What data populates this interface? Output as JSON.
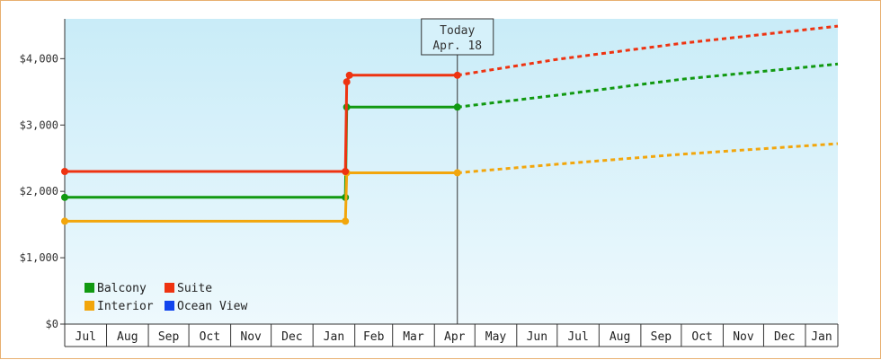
{
  "chart_data": {
    "type": "line",
    "style": "step",
    "title": "",
    "xlabel": "",
    "ylabel": "",
    "y_unit_prefix": "$",
    "ylim": [
      0,
      4600
    ],
    "y_ticks": [
      {
        "value": 0,
        "label": "$0"
      },
      {
        "value": 1000,
        "label": "$1,000"
      },
      {
        "value": 2000,
        "label": "$2,000"
      },
      {
        "value": 3000,
        "label": "$3,000"
      },
      {
        "value": 4000,
        "label": "$4,000"
      }
    ],
    "x_month_labels": [
      "Jul",
      "Aug",
      "Sep",
      "Oct",
      "Nov",
      "Dec",
      "Jan",
      "Feb",
      "Mar",
      "Apr",
      "May",
      "Jun",
      "Jul",
      "Aug",
      "Sep",
      "Oct",
      "Nov",
      "Dec",
      "Jan"
    ],
    "x_start": "2024-07-01",
    "x_end": "2026-01-25",
    "today": {
      "label_line1": "Today",
      "label_line2": "Apr. 18",
      "date": "2025-04-18"
    },
    "grid": true,
    "legend_position": "bottom-left",
    "series": [
      {
        "name": "Balcony",
        "color": "#119911",
        "history": [
          [
            "2024-07-01",
            1910
          ],
          [
            "2025-01-25",
            1910
          ],
          [
            "2025-01-26",
            3270
          ],
          [
            "2025-04-18",
            3270
          ]
        ],
        "forecast": [
          [
            "2025-04-18",
            3270
          ],
          [
            "2025-07-01",
            3450
          ],
          [
            "2025-10-01",
            3690
          ],
          [
            "2026-01-25",
            3920
          ]
        ]
      },
      {
        "name": "Interior",
        "color": "#f2a60c",
        "history": [
          [
            "2024-07-01",
            1550
          ],
          [
            "2025-01-25",
            1550
          ],
          [
            "2025-01-26",
            2280
          ],
          [
            "2025-04-18",
            2280
          ]
        ],
        "forecast": [
          [
            "2025-04-18",
            2280
          ],
          [
            "2025-07-01",
            2410
          ],
          [
            "2025-10-01",
            2560
          ],
          [
            "2026-01-25",
            2720
          ]
        ]
      },
      {
        "name": "Suite",
        "color": "#ee3311",
        "history": [
          [
            "2024-07-01",
            2300
          ],
          [
            "2025-01-25",
            2300
          ],
          [
            "2025-01-26",
            3650
          ],
          [
            "2025-01-28",
            3750
          ],
          [
            "2025-04-18",
            3750
          ]
        ],
        "forecast": [
          [
            "2025-04-18",
            3750
          ],
          [
            "2025-07-01",
            3990
          ],
          [
            "2025-10-01",
            4230
          ],
          [
            "2026-01-25",
            4490
          ]
        ]
      },
      {
        "name": "Ocean View",
        "color": "#1144ee",
        "history": [],
        "forecast": []
      }
    ]
  }
}
